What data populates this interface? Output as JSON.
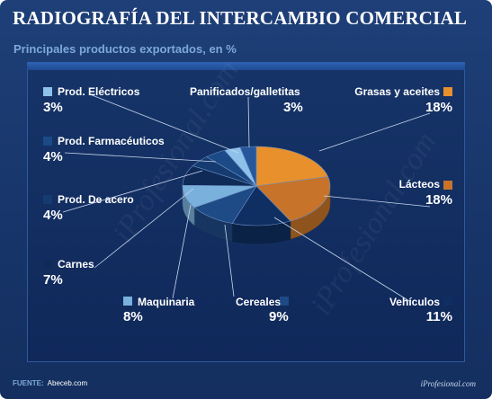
{
  "header": {
    "title": "RADIOGRAFÍA DEL INTERCAMBIO COMERCIAL",
    "subtitle": "Principales productos exportados, en %"
  },
  "footer": {
    "source_label": "FUENTE:",
    "source_value": "Abeceb.com",
    "brand": "iProfesional.com"
  },
  "chart_data": {
    "type": "pie",
    "title": "RADIOGRAFÍA DEL INTERCAMBIO COMERCIAL",
    "subtitle": "Principales productos exportados, en %",
    "unit": "%",
    "slices": [
      {
        "label": "Grasas y aceites",
        "value": 18,
        "display": "18%",
        "color": "#e8902c"
      },
      {
        "label": "Lácteos",
        "value": 18,
        "display": "18%",
        "color": "#c7742a"
      },
      {
        "label": "Vehículos",
        "value": 11,
        "display": "11%",
        "color": "#0f2f63"
      },
      {
        "label": "Cereales",
        "value": 9,
        "display": "9%",
        "color": "#1e4a86"
      },
      {
        "label": "Maquinaria",
        "value": 8,
        "display": "8%",
        "color": "#7ab0dc"
      },
      {
        "label": "Carnes",
        "value": 7,
        "display": "7%",
        "color": "#102a58"
      },
      {
        "label": "Prod. De acero",
        "value": 4,
        "display": "4%",
        "color": "#163b70"
      },
      {
        "label": "Prod. Farmacéuticos",
        "value": 4,
        "display": "4%",
        "color": "#1b4a86"
      },
      {
        "label": "Prod. Eléctricos",
        "value": 3,
        "display": "3%",
        "color": "#8ec2ea"
      },
      {
        "label": "Panificados/galletitas",
        "value": 3,
        "display": "3%",
        "color": "#27579a"
      }
    ]
  }
}
